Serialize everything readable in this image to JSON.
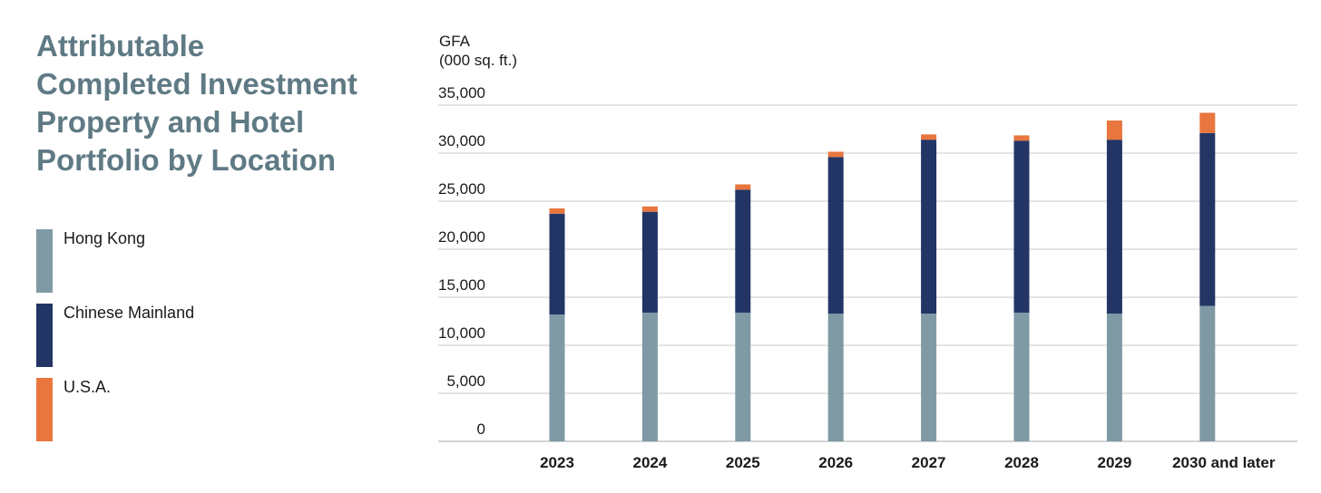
{
  "title_lines": [
    "Attributable",
    "Completed Investment",
    "Property and Hotel",
    "Portfolio by Location"
  ],
  "legend": [
    {
      "label": "Hong Kong",
      "color": "#7f9aa5"
    },
    {
      "label": "Chinese Mainland",
      "color": "#233565"
    },
    {
      "label": "U.S.A.",
      "color": "#e8763e"
    }
  ],
  "y_unit": {
    "line1": "GFA",
    "line2": "(000 sq. ft.)"
  },
  "chart_data": {
    "type": "bar",
    "stacked": true,
    "categories": [
      "2023",
      "2024",
      "2025",
      "2026",
      "2027",
      "2028",
      "2029",
      "2030 and later"
    ],
    "series": [
      {
        "name": "Hong Kong",
        "color": "#7f9aa5",
        "values": [
          13200,
          13400,
          13400,
          13300,
          13300,
          13400,
          13300,
          14100
        ]
      },
      {
        "name": "Chinese Mainland",
        "color": "#233565",
        "values": [
          10500,
          10500,
          12800,
          16300,
          18100,
          17900,
          18100,
          18000
        ]
      },
      {
        "name": "U.S.A.",
        "color": "#e8763e",
        "values": [
          550,
          550,
          550,
          550,
          550,
          550,
          2000,
          2100
        ]
      }
    ],
    "ylabel": "GFA (000 sq. ft.)",
    "ylim": [
      0,
      35000
    ],
    "yticks": [
      0,
      5000,
      10000,
      15000,
      20000,
      25000,
      30000,
      35000
    ],
    "ytick_labels": [
      "0",
      "5,000",
      "10,000",
      "15,000",
      "20,000",
      "25,000",
      "30,000",
      "35,000"
    ],
    "grid": true,
    "gridline_color": "#c8c8c8",
    "legend_position": "left"
  }
}
